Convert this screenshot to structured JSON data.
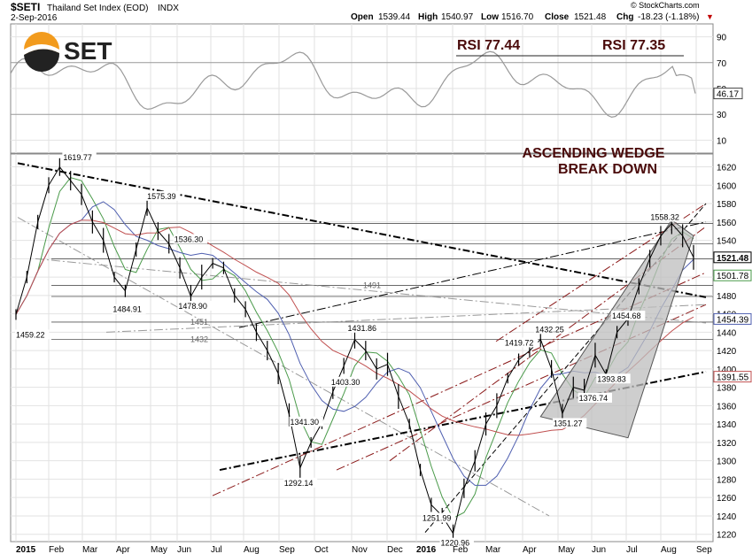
{
  "header": {
    "symbol": "$SETI",
    "name": "Thailand Set Index (EOD)",
    "exchange": "INDX",
    "date": "2-Sep-2016",
    "open_label": "Open",
    "open": "1539.44",
    "high_label": "High",
    "high": "1540.97",
    "low_label": "Low",
    "low": "1516.70",
    "close_label": "Close",
    "close": "1521.48",
    "chg_label": "Chg",
    "chg": "-18.23 (-1.18%)",
    "chg_marker": "▼",
    "watermark": "© StockCharts.com"
  },
  "logo": {
    "text": "SET"
  },
  "rsi_panel": {
    "left_label": "RSI 77.44",
    "right_label": "RSI 77.35",
    "current_value": "46.17",
    "ticks": [
      "90",
      "70",
      "50",
      "30",
      "10"
    ]
  },
  "annotation": {
    "line1": "ASCENDING WEDGE",
    "line2": "BREAK DOWN"
  },
  "colors": {
    "price": "#000000",
    "ma_short": "#4a9a4a",
    "ma_mid": "#4f5fb0",
    "ma_long": "#c05050",
    "trend_dark": "#000000",
    "trend_red": "#8b1a1a",
    "trend_grey": "#9a9a9a",
    "wedge_fill": "#bdbdbd",
    "annotation": "#4a0a0a",
    "rsi_line": "#999999"
  },
  "chart_data": [
    {
      "type": "line",
      "title": "$SETI Thailand Set Index (EOD) INDX",
      "xlabel": "",
      "ylabel": "",
      "x_tick_labels": [
        "2015",
        "Feb",
        "Mar",
        "Apr",
        "May",
        "Jun",
        "Jul",
        "Aug",
        "Sep",
        "Oct",
        "Nov",
        "Dec",
        "2016",
        "Feb",
        "Mar",
        "Apr",
        "May",
        "Jun",
        "Jul",
        "Aug",
        "Sep"
      ],
      "y_ticks": [
        1220,
        1240,
        1260,
        1280,
        1300,
        1320,
        1340,
        1360,
        1380,
        1400,
        1420,
        1440,
        1460,
        1480,
        1500,
        1520,
        1540,
        1560,
        1580,
        1600,
        1620
      ],
      "ylim": [
        1212,
        1634
      ],
      "grid": true,
      "series": [
        {
          "values": [
            1459.22,
            1500,
            1560,
            1600,
            1619.77,
            1605,
            1590,
            1560,
            1540,
            1500,
            1484.91,
            1530,
            1575.39,
            1550,
            1536.3,
            1510,
            1478.9,
            1500,
            1515,
            1510,
            1480,
            1465,
            1440,
            1420,
            1395,
            1350,
            1292.14,
            1320,
            1341.3,
            1375,
            1403.3,
            1431.86,
            1420,
            1400,
            1405,
            1370,
            1340,
            1290,
            1251.99,
            1240,
            1220.96,
            1270,
            1300,
            1340,
            1360,
            1390,
            1410,
            1419.72,
            1432.25,
            1400,
            1351.27,
            1380,
            1376.74,
            1415,
            1393.83,
            1440,
            1454.68,
            1490,
            1520,
            1545,
            1558.32,
            1545,
            1521.48
          ]
        }
      ],
      "price_labels": [
        "1459.22",
        "1619.77",
        "1575.39",
        "1536.30",
        "1484.91",
        "1478.90",
        "1451",
        "1432",
        "1403.30",
        "1431.86",
        "1341.30",
        "1292.14",
        "1251.99",
        "1220.96",
        "1419.72",
        "1432.25",
        "1351.27",
        "1376.74",
        "1393.83",
        "1454.68",
        "1558.32",
        "1491"
      ],
      "right_axis_flags": [
        {
          "value": 1521.48,
          "label": "1521.48"
        },
        {
          "value": 1501.78,
          "label": "1501.78"
        },
        {
          "value": 1454.39,
          "label": "1454.39"
        },
        {
          "value": 1391.55,
          "label": "1391.55"
        }
      ],
      "horizontal_levels": [
        1558.32,
        1536.3,
        1519.77,
        1491,
        1478.9,
        1451,
        1432
      ]
    },
    {
      "type": "line",
      "title": "RSI",
      "ylim": [
        0,
        100
      ],
      "y_ticks": [
        10,
        30,
        50,
        70,
        90
      ],
      "last_value": 46.17
    }
  ]
}
